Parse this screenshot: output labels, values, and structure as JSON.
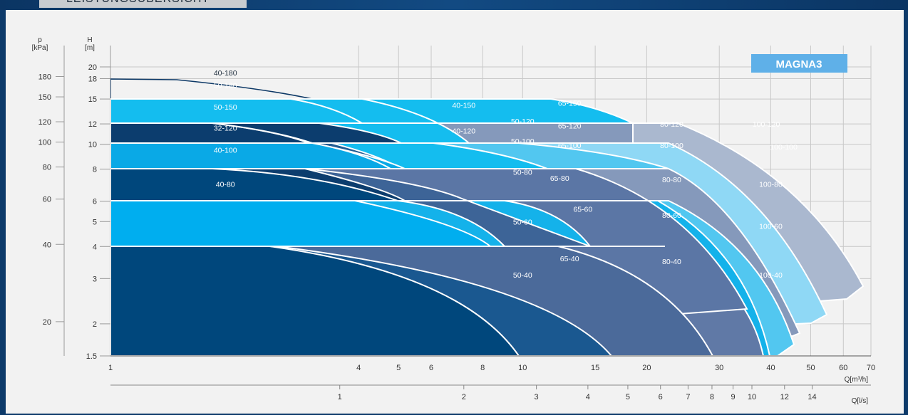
{
  "header": {
    "tab_title": "LEISTUNGSÜBERSICHT"
  },
  "chart_data": {
    "type": "area",
    "title": "",
    "brand_label": "MAGNA3",
    "x_axis_primary": {
      "label": "Q[m³/h]",
      "scale": "log",
      "range": [
        1,
        70
      ],
      "ticks": [
        1,
        4,
        5,
        6,
        8,
        10,
        15,
        20,
        30,
        40,
        50,
        60,
        70
      ]
    },
    "x_axis_secondary": {
      "label": "Q[l/s]",
      "ticks": [
        1,
        2,
        3,
        4,
        5,
        6,
        7,
        8,
        9,
        10,
        12,
        14
      ]
    },
    "y_axis_head": {
      "label": "H",
      "unit": "[m]",
      "scale": "log",
      "range": [
        1.5,
        20
      ],
      "ticks": [
        1.5,
        2,
        3,
        4,
        5,
        6,
        8,
        10,
        12,
        15,
        18,
        20
      ]
    },
    "y_axis_pressure": {
      "label": "p",
      "unit": "[kPa]",
      "ticks": [
        20,
        40,
        60,
        80,
        100,
        120,
        150,
        180
      ]
    },
    "grid": true,
    "series": [
      {
        "name": "100-120",
        "color": "#aab8cf",
        "label_at": [
          39,
          12
        ]
      },
      {
        "name": "100-100",
        "color": "#8fd8f5",
        "label_at": [
          43,
          9.8
        ]
      },
      {
        "name": "100-80",
        "color": "#8599bb",
        "label_at": [
          40,
          7
        ]
      },
      {
        "name": "100-60",
        "color": "#52c7f0",
        "label_at": [
          40,
          4.8
        ]
      },
      {
        "name": "100-40",
        "color": "#6079a6",
        "label_at": [
          40,
          3.1
        ]
      },
      {
        "name": "80-120",
        "color": "#8599bb",
        "label_at": [
          23,
          12
        ]
      },
      {
        "name": "80-100",
        "color": "#52c7f0",
        "label_at": [
          23,
          9.9
        ]
      },
      {
        "name": "80-80",
        "color": "#5b76a5",
        "label_at": [
          23,
          7.3
        ]
      },
      {
        "name": "80-60",
        "color": "#14b2ea",
        "label_at": [
          23,
          5.3
        ]
      },
      {
        "name": "80-40",
        "color": "#4b6a9a",
        "label_at": [
          23,
          3.5
        ]
      },
      {
        "name": "65-150",
        "color": "#14bdef",
        "label_at": [
          13,
          14.5
        ]
      },
      {
        "name": "65-120",
        "color": "#4d6e9d",
        "label_at": [
          13,
          11.8
        ]
      },
      {
        "name": "65-100",
        "color": "#14bdef",
        "label_at": [
          13,
          9.9
        ]
      },
      {
        "name": "65-80",
        "color": "#3d6497",
        "label_at": [
          12.3,
          7.4
        ]
      },
      {
        "name": "65-60",
        "color": "#14b2ea",
        "label_at": [
          14,
          5.6
        ]
      },
      {
        "name": "65-40",
        "color": "#1a5890",
        "label_at": [
          13,
          3.6
        ]
      },
      {
        "name": "50-180",
        "color": "#0c3866",
        "label_at": [
          1.9,
          17
        ]
      },
      {
        "name": "50-150",
        "color": "#14bdef",
        "label_at": [
          1.9,
          14
        ]
      },
      {
        "name": "50-120",
        "color": "#225d94",
        "label_at": [
          10,
          12.3
        ]
      },
      {
        "name": "50-100",
        "color": "#0aa9e6",
        "label_at": [
          10,
          10.3
        ]
      },
      {
        "name": "50-80",
        "color": "#0c3d6e",
        "label_at": [
          10,
          7.8
        ]
      },
      {
        "name": "50-60",
        "color": "#00aeef",
        "label_at": [
          10,
          5
        ]
      },
      {
        "name": "50-40",
        "color": "#00477c",
        "label_at": [
          10,
          3.1
        ]
      },
      {
        "name": "40-180",
        "color": "#ffffff",
        "label_at": [
          1.9,
          19
        ]
      },
      {
        "name": "40-150",
        "color": "#14bdef",
        "label_at": [
          7.2,
          14.2
        ]
      },
      {
        "name": "40-120",
        "color": "#0c3d6e",
        "label_at": [
          7.2,
          11.3
        ]
      },
      {
        "name": "40-100",
        "color": "#0aa9e6",
        "label_at": [
          1.9,
          9.5
        ]
      },
      {
        "name": "40-80",
        "color": "#00477c",
        "label_at": [
          1.9,
          7
        ]
      },
      {
        "name": "32-120",
        "color": "#0c3d6e",
        "label_at": [
          1.9,
          11.6
        ]
      }
    ]
  }
}
